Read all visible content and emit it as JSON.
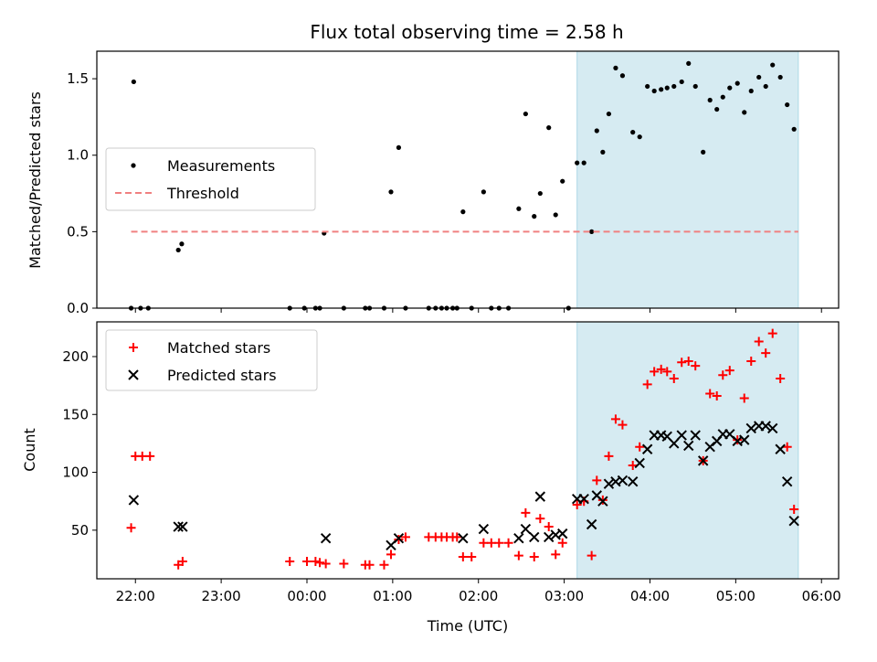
{
  "chart_data": [
    {
      "type": "scatter",
      "title": "Flux total observing time = 2.58 h",
      "ylabel": "Matched/Predicted stars",
      "xlabel": "",
      "xlim": [
        -0.45,
        8.2
      ],
      "ylim": [
        0,
        1.68
      ],
      "x_ticks": [
        {
          "value": 0,
          "label": "22:00"
        },
        {
          "value": 1,
          "label": "23:00"
        },
        {
          "value": 2,
          "label": "00:00"
        },
        {
          "value": 3,
          "label": "01:00"
        },
        {
          "value": 4,
          "label": "02:00"
        },
        {
          "value": 5,
          "label": "03:00"
        },
        {
          "value": 6,
          "label": "04:00"
        },
        {
          "value": 7,
          "label": "05:00"
        },
        {
          "value": 8,
          "label": "06:00"
        }
      ],
      "y_ticks": [
        {
          "value": 0,
          "label": "0.0"
        },
        {
          "value": 0.5,
          "label": "0.5"
        },
        {
          "value": 1,
          "label": "1.0"
        },
        {
          "value": 1.5,
          "label": "1.5"
        }
      ],
      "highlight_span": {
        "x": [
          5.15,
          7.73
        ],
        "color": "#add8e6"
      },
      "legend_position": "center-left",
      "series": [
        {
          "name": "Measurements",
          "kind": "dot",
          "color": "#000000",
          "points": [
            [
              -0.05,
              0
            ],
            [
              -0.02,
              1.48
            ],
            [
              0.06,
              0
            ],
            [
              0.15,
              0
            ],
            [
              0.5,
              0.38
            ],
            [
              0.54,
              0.42
            ],
            [
              2.2,
              0.49
            ],
            [
              1.8,
              0
            ],
            [
              1.97,
              0
            ],
            [
              2.1,
              0
            ],
            [
              2.15,
              0
            ],
            [
              2.43,
              0
            ],
            [
              2.68,
              0
            ],
            [
              2.73,
              0
            ],
            [
              2.9,
              0
            ],
            [
              2.98,
              0.76
            ],
            [
              3.07,
              1.05
            ],
            [
              3.15,
              0
            ],
            [
              3.42,
              0
            ],
            [
              3.5,
              0
            ],
            [
              3.57,
              0
            ],
            [
              3.63,
              0
            ],
            [
              3.7,
              0
            ],
            [
              3.75,
              0
            ],
            [
              3.82,
              0.63
            ],
            [
              3.92,
              0
            ],
            [
              4.06,
              0.76
            ],
            [
              4.15,
              0
            ],
            [
              4.24,
              0
            ],
            [
              4.35,
              0
            ],
            [
              4.47,
              0.65
            ],
            [
              4.55,
              1.27
            ],
            [
              4.65,
              0.6
            ],
            [
              4.72,
              0.75
            ],
            [
              4.82,
              1.18
            ],
            [
              4.9,
              0.61
            ],
            [
              4.98,
              0.83
            ],
            [
              5.05,
              0
            ],
            [
              5.15,
              0.95
            ],
            [
              5.23,
              0.95
            ],
            [
              5.32,
              0.5
            ],
            [
              5.38,
              1.16
            ],
            [
              5.45,
              1.02
            ],
            [
              5.52,
              1.27
            ],
            [
              5.6,
              1.57
            ],
            [
              5.68,
              1.52
            ],
            [
              5.8,
              1.15
            ],
            [
              5.88,
              1.12
            ],
            [
              5.97,
              1.45
            ],
            [
              6.05,
              1.42
            ],
            [
              6.13,
              1.43
            ],
            [
              6.2,
              1.44
            ],
            [
              6.28,
              1.45
            ],
            [
              6.37,
              1.48
            ],
            [
              6.45,
              1.6
            ],
            [
              6.53,
              1.45
            ],
            [
              6.62,
              1.02
            ],
            [
              6.7,
              1.36
            ],
            [
              6.78,
              1.3
            ],
            [
              6.85,
              1.38
            ],
            [
              6.93,
              1.44
            ],
            [
              7.02,
              1.47
            ],
            [
              7.1,
              1.28
            ],
            [
              7.18,
              1.42
            ],
            [
              7.27,
              1.51
            ],
            [
              7.35,
              1.45
            ],
            [
              7.43,
              1.59
            ],
            [
              7.52,
              1.51
            ],
            [
              7.6,
              1.33
            ],
            [
              7.68,
              1.17
            ]
          ]
        },
        {
          "name": "Threshold",
          "kind": "dashed-line",
          "color": "#f08080",
          "points": [
            [
              -0.05,
              0.5
            ],
            [
              7.73,
              0.5
            ]
          ]
        }
      ]
    },
    {
      "type": "scatter",
      "title": "",
      "ylabel": "Count",
      "xlabel": "Time (UTC)",
      "xlim": [
        -0.45,
        8.2
      ],
      "ylim": [
        8,
        230
      ],
      "x_ticks": [
        {
          "value": 0,
          "label": "22:00"
        },
        {
          "value": 1,
          "label": "23:00"
        },
        {
          "value": 2,
          "label": "00:00"
        },
        {
          "value": 3,
          "label": "01:00"
        },
        {
          "value": 4,
          "label": "02:00"
        },
        {
          "value": 5,
          "label": "03:00"
        },
        {
          "value": 6,
          "label": "04:00"
        },
        {
          "value": 7,
          "label": "05:00"
        },
        {
          "value": 8,
          "label": "06:00"
        }
      ],
      "y_ticks": [
        {
          "value": 50,
          "label": "50"
        },
        {
          "value": 100,
          "label": "100"
        },
        {
          "value": 150,
          "label": "150"
        },
        {
          "value": 200,
          "label": "200"
        }
      ],
      "highlight_span": {
        "x": [
          5.15,
          7.73
        ],
        "color": "#add8e6"
      },
      "legend_position": "upper-left",
      "series": [
        {
          "name": "Matched stars",
          "kind": "plus",
          "color": "#ff0000",
          "points": [
            [
              -0.05,
              52
            ],
            [
              0.0,
              114
            ],
            [
              0.08,
              114
            ],
            [
              0.17,
              114
            ],
            [
              0.5,
              20
            ],
            [
              0.55,
              23
            ],
            [
              1.8,
              23
            ],
            [
              2.0,
              23
            ],
            [
              2.1,
              23
            ],
            [
              2.15,
              22
            ],
            [
              2.22,
              21
            ],
            [
              2.43,
              21
            ],
            [
              2.68,
              20
            ],
            [
              2.73,
              20
            ],
            [
              2.9,
              20
            ],
            [
              2.98,
              29
            ],
            [
              3.07,
              42
            ],
            [
              3.15,
              44
            ],
            [
              3.42,
              44
            ],
            [
              3.5,
              44
            ],
            [
              3.57,
              44
            ],
            [
              3.63,
              44
            ],
            [
              3.7,
              44
            ],
            [
              3.75,
              44
            ],
            [
              3.82,
              27
            ],
            [
              3.92,
              27
            ],
            [
              4.06,
              39
            ],
            [
              4.15,
              39
            ],
            [
              4.24,
              39
            ],
            [
              4.35,
              39
            ],
            [
              4.47,
              28
            ],
            [
              4.55,
              65
            ],
            [
              4.65,
              27
            ],
            [
              4.72,
              60
            ],
            [
              4.82,
              53
            ],
            [
              4.9,
              29
            ],
            [
              4.98,
              39
            ],
            [
              5.15,
              72
            ],
            [
              5.23,
              75
            ],
            [
              5.32,
              28
            ],
            [
              5.38,
              93
            ],
            [
              5.45,
              76
            ],
            [
              5.52,
              114
            ],
            [
              5.6,
              146
            ],
            [
              5.68,
              141
            ],
            [
              5.8,
              106
            ],
            [
              5.88,
              122
            ],
            [
              5.97,
              176
            ],
            [
              6.05,
              187
            ],
            [
              6.13,
              189
            ],
            [
              6.2,
              187
            ],
            [
              6.28,
              181
            ],
            [
              6.37,
              195
            ],
            [
              6.45,
              196
            ],
            [
              6.53,
              192
            ],
            [
              6.62,
              110
            ],
            [
              6.7,
              168
            ],
            [
              6.78,
              166
            ],
            [
              6.85,
              184
            ],
            [
              6.93,
              188
            ],
            [
              7.02,
              128
            ],
            [
              7.1,
              164
            ],
            [
              7.18,
              196
            ],
            [
              7.27,
              213
            ],
            [
              7.35,
              203
            ],
            [
              7.43,
              220
            ],
            [
              7.52,
              181
            ],
            [
              7.6,
              122
            ],
            [
              7.68,
              68
            ]
          ]
        },
        {
          "name": "Predicted stars",
          "kind": "cross",
          "color": "#000000",
          "points": [
            [
              -0.02,
              76
            ],
            [
              0.5,
              53
            ],
            [
              0.55,
              53
            ],
            [
              2.22,
              43
            ],
            [
              2.98,
              37
            ],
            [
              3.07,
              43
            ],
            [
              3.82,
              43
            ],
            [
              4.06,
              51
            ],
            [
              4.47,
              43
            ],
            [
              4.55,
              51
            ],
            [
              4.65,
              44
            ],
            [
              4.72,
              79
            ],
            [
              4.82,
              44
            ],
            [
              4.9,
              46
            ],
            [
              4.98,
              47
            ],
            [
              5.15,
              77
            ],
            [
              5.23,
              77
            ],
            [
              5.32,
              55
            ],
            [
              5.38,
              80
            ],
            [
              5.45,
              75
            ],
            [
              5.52,
              90
            ],
            [
              5.6,
              92
            ],
            [
              5.68,
              93
            ],
            [
              5.8,
              92
            ],
            [
              5.88,
              108
            ],
            [
              5.97,
              120
            ],
            [
              6.05,
              132
            ],
            [
              6.13,
              132
            ],
            [
              6.2,
              131
            ],
            [
              6.28,
              125
            ],
            [
              6.37,
              132
            ],
            [
              6.45,
              123
            ],
            [
              6.53,
              132
            ],
            [
              6.62,
              110
            ],
            [
              6.7,
              122
            ],
            [
              6.78,
              127
            ],
            [
              6.85,
              133
            ],
            [
              6.93,
              133
            ],
            [
              7.02,
              127
            ],
            [
              7.1,
              128
            ],
            [
              7.18,
              138
            ],
            [
              7.27,
              140
            ],
            [
              7.35,
              140
            ],
            [
              7.43,
              138
            ],
            [
              7.52,
              120
            ],
            [
              7.6,
              92
            ],
            [
              7.68,
              58
            ]
          ]
        }
      ]
    }
  ]
}
